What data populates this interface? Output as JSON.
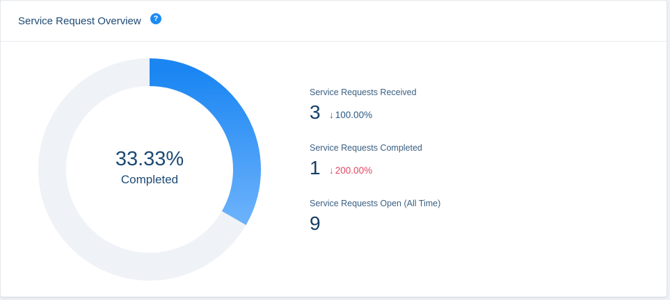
{
  "header": {
    "title": "Service Request Overview",
    "help_icon": "?"
  },
  "donut": {
    "percent_label": "33.33%",
    "status_label": "Completed",
    "completed_fraction": 0.3333,
    "colors": {
      "fill_start": "#1b86f2",
      "fill_end": "#6ab1fb",
      "track": "#eff2f6"
    }
  },
  "stats": [
    {
      "label": "Service Requests Received",
      "value": "3",
      "arrow": "↓",
      "change": "100.00%",
      "change_color": "#2a5a86"
    },
    {
      "label": "Service Requests Completed",
      "value": "1",
      "arrow": "↓",
      "change": "200.00%",
      "change_color": "#e0455f"
    },
    {
      "label": "Service Requests Open (All Time)",
      "value": "9"
    }
  ]
}
